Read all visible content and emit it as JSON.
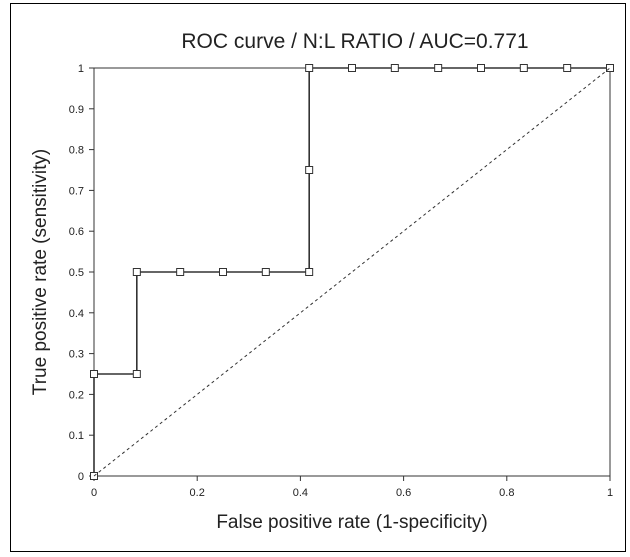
{
  "chart_data": {
    "type": "line",
    "title": "ROC curve / N:L RATIO / AUC=0.771",
    "xlabel": "False positive rate (1-specificity)",
    "ylabel": "True positive rate (sensitivity)",
    "xlim": [
      0,
      1
    ],
    "ylim": [
      0,
      1
    ],
    "xticks": [
      "0",
      "0.2",
      "0.4",
      "0.6",
      "0.8",
      "1"
    ],
    "yticks": [
      "0",
      "0.1",
      "0.2",
      "0.3",
      "0.4",
      "0.5",
      "0.6",
      "0.7",
      "0.8",
      "0.9",
      "1"
    ],
    "grid": false,
    "series": [
      {
        "points": [
          [
            0,
            0
          ],
          [
            0,
            0.25
          ],
          [
            0.083,
            0.25
          ],
          [
            0.083,
            0.5
          ],
          [
            0.167,
            0.5
          ],
          [
            0.25,
            0.5
          ],
          [
            0.333,
            0.5
          ],
          [
            0.417,
            0.5
          ],
          [
            0.417,
            0.75
          ],
          [
            0.417,
            1
          ],
          [
            0.5,
            1
          ],
          [
            0.583,
            1
          ],
          [
            0.667,
            1
          ],
          [
            0.75,
            1
          ],
          [
            0.833,
            1
          ],
          [
            0.917,
            1
          ],
          [
            1,
            1
          ]
        ],
        "color": "#333333",
        "marker": "square"
      },
      {
        "points": [
          [
            0,
            0
          ],
          [
            1,
            1
          ]
        ],
        "color": "#333333",
        "line_style": "dashed"
      }
    ]
  }
}
